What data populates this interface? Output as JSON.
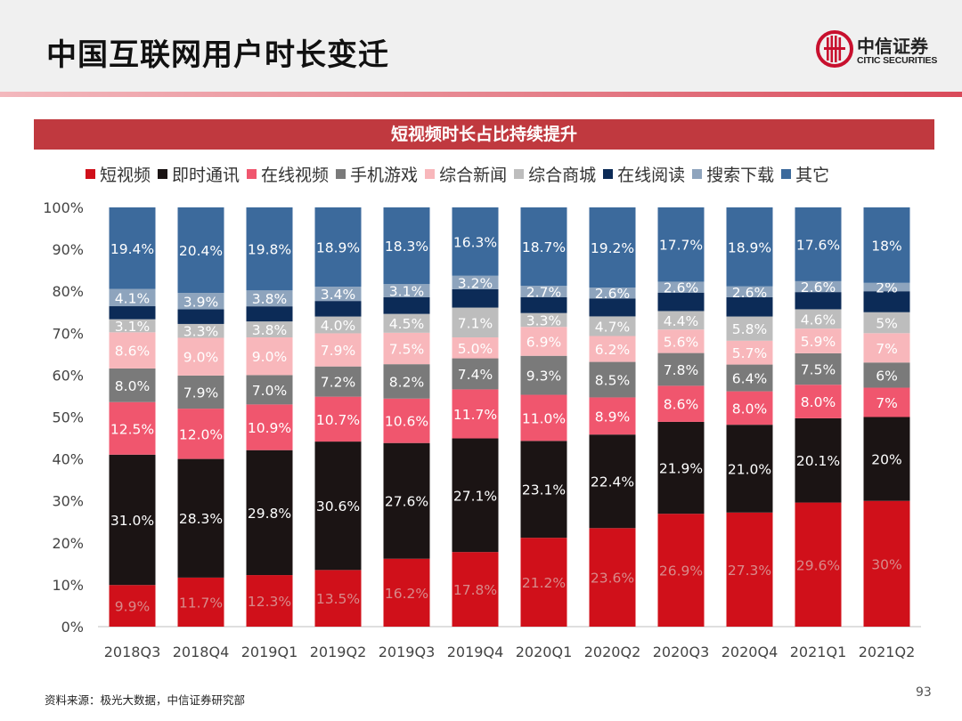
{
  "header": {
    "title": "中国互联网用户时长变迁",
    "logo_name": "中信证券",
    "logo_sub": "CITIC SECURITIES"
  },
  "banner": {
    "text": "短视频时长占比持续提升"
  },
  "footer": {
    "source": "资料来源：极光大数据，中信证券研究部",
    "page_number": "93"
  },
  "colors": {
    "banner": "#c0393f",
    "accent": "#c8102e"
  },
  "chart_data": {
    "type": "bar",
    "stacked": true,
    "percent_stacked": true,
    "title": "短视频时长占比持续提升",
    "xlabel": "",
    "ylabel": "",
    "ylim": [
      0,
      100
    ],
    "y_ticks": [
      "0%",
      "10%",
      "20%",
      "30%",
      "40%",
      "50%",
      "60%",
      "70%",
      "80%",
      "90%",
      "100%"
    ],
    "legend_position": "top",
    "grid": false,
    "categories": [
      "2018Q3",
      "2018Q4",
      "2019Q1",
      "2019Q2",
      "2019Q3",
      "2019Q4",
      "2020Q1",
      "2020Q2",
      "2020Q3",
      "2020Q4",
      "2021Q1",
      "2021Q2"
    ],
    "series": [
      {
        "name": "短视频",
        "color": "#d0101a",
        "values": [
          9.9,
          11.7,
          12.3,
          13.5,
          16.2,
          17.8,
          21.2,
          23.6,
          26.9,
          27.3,
          29.6,
          30
        ],
        "labels": [
          "9.9%",
          "11.7%",
          "12.3%",
          "13.5%",
          "16.2%",
          "17.8%",
          "21.2%",
          "23.6%",
          "26.9%",
          "27.3%",
          "29.6%",
          "30%"
        ]
      },
      {
        "name": "即时通讯",
        "color": "#1b1414",
        "values": [
          31.0,
          28.3,
          29.8,
          30.6,
          27.6,
          27.1,
          23.1,
          22.4,
          21.9,
          21.0,
          20.1,
          20
        ],
        "labels": [
          "31.0%",
          "28.3%",
          "29.8%",
          "30.6%",
          "27.6%",
          "27.1%",
          "23.1%",
          "22.4%",
          "21.9%",
          "21.0%",
          "20.1%",
          "20%"
        ]
      },
      {
        "name": "在线视频",
        "color": "#f0566e",
        "values": [
          12.5,
          12.0,
          10.9,
          10.7,
          10.6,
          11.7,
          11.0,
          8.9,
          8.6,
          8.0,
          8.0,
          7
        ],
        "labels": [
          "12.5%",
          "12.0%",
          "10.9%",
          "10.7%",
          "10.6%",
          "11.7%",
          "11.0%",
          "8.9%",
          "8.6%",
          "8.0%",
          "8.0%",
          "7%"
        ]
      },
      {
        "name": "手机游戏",
        "color": "#7a7a7a",
        "values": [
          8.0,
          7.9,
          7.0,
          7.2,
          8.2,
          7.4,
          9.3,
          8.5,
          7.8,
          6.4,
          7.5,
          6
        ],
        "labels": [
          "8.0%",
          "7.9%",
          "7.0%",
          "7.2%",
          "8.2%",
          "7.4%",
          "9.3%",
          "8.5%",
          "7.8%",
          "6.4%",
          "7.5%",
          "6%"
        ]
      },
      {
        "name": "综合新闻",
        "color": "#f8b7bb",
        "values": [
          8.6,
          9.0,
          9.0,
          7.9,
          7.5,
          5.0,
          6.9,
          6.2,
          5.6,
          5.7,
          5.9,
          7
        ],
        "labels": [
          "8.6%",
          "9.0%",
          "9.0%",
          "7.9%",
          "7.5%",
          "5.0%",
          "6.9%",
          "6.2%",
          "5.6%",
          "5.7%",
          "5.9%",
          "7%"
        ]
      },
      {
        "name": "综合商城",
        "color": "#bdbdbd",
        "values": [
          3.1,
          3.3,
          3.8,
          4.0,
          4.5,
          7.1,
          3.3,
          4.7,
          4.4,
          5.8,
          4.6,
          5
        ],
        "labels": [
          "3.1%",
          "3.3%",
          "3.8%",
          "4.0%",
          "4.5%",
          "7.1%",
          "3.3%",
          "4.7%",
          "4.4%",
          "5.8%",
          "4.6%",
          "5%"
        ]
      },
      {
        "name": "在线阅读",
        "color": "#0c2b57",
        "values": [
          3.1,
          3.5,
          3.6,
          3.7,
          4.0,
          4.4,
          3.8,
          4.3,
          4.4,
          4.6,
          4.1,
          5
        ],
        "labels": []
      },
      {
        "name": "搜索下载",
        "color": "#8ea4bd",
        "values": [
          4.1,
          3.9,
          3.8,
          3.4,
          3.1,
          3.2,
          2.7,
          2.6,
          2.6,
          2.6,
          2.6,
          2
        ],
        "labels": [
          "4.1%",
          "3.9%",
          "3.8%",
          "3.4%",
          "3.1%",
          "3.2%",
          "2.7%",
          "2.6%",
          "2.6%",
          "2.6%",
          "2.6%",
          "2%"
        ]
      },
      {
        "name": "其它",
        "color": "#3c6a9c",
        "values": [
          19.4,
          20.4,
          19.8,
          18.9,
          18.3,
          16.3,
          18.7,
          19.2,
          17.7,
          18.9,
          17.6,
          18
        ],
        "labels": [
          "19.4%",
          "20.4%",
          "19.8%",
          "18.9%",
          "18.3%",
          "16.3%",
          "18.7%",
          "19.2%",
          "17.7%",
          "18.9%",
          "17.6%",
          "18%"
        ]
      }
    ]
  }
}
